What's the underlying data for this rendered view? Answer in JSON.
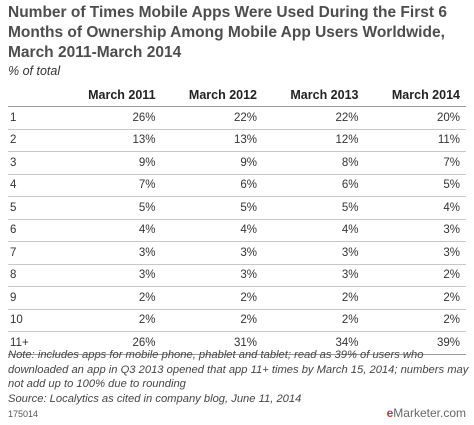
{
  "chart_data": {
    "type": "table",
    "title": "Number of Times Mobile Apps Were Used During the First 6 Months of Ownership Among Mobile App Users Worldwide, March 2011-March 2014",
    "subtitle": "% of total",
    "columns": [
      "",
      "March 2011",
      "March 2012",
      "March 2013",
      "March 2014"
    ],
    "rows": [
      {
        "label": "1",
        "values": [
          "26%",
          "22%",
          "22%",
          "20%"
        ]
      },
      {
        "label": "2",
        "values": [
          "13%",
          "13%",
          "12%",
          "11%"
        ]
      },
      {
        "label": "3",
        "values": [
          "9%",
          "9%",
          "8%",
          "7%"
        ]
      },
      {
        "label": "4",
        "values": [
          "7%",
          "6%",
          "6%",
          "5%"
        ]
      },
      {
        "label": "5",
        "values": [
          "5%",
          "5%",
          "5%",
          "4%"
        ]
      },
      {
        "label": "6",
        "values": [
          "4%",
          "4%",
          "4%",
          "3%"
        ]
      },
      {
        "label": "7",
        "values": [
          "3%",
          "3%",
          "3%",
          "3%"
        ]
      },
      {
        "label": "8",
        "values": [
          "3%",
          "3%",
          "3%",
          "2%"
        ]
      },
      {
        "label": "9",
        "values": [
          "2%",
          "2%",
          "2%",
          "2%"
        ]
      },
      {
        "label": "10",
        "values": [
          "2%",
          "2%",
          "2%",
          "2%"
        ]
      },
      {
        "label": "11+",
        "values": [
          "26%",
          "31%",
          "34%",
          "39%"
        ]
      }
    ]
  },
  "note": "Note: includes apps for mobile phone, phablet and tablet; read as 39% of users who downloaded an app in Q3 2013 opened that app 11+ times by March 15, 2014; numbers may not add up to 100% due to rounding",
  "source": "Source: Localytics as cited in company blog, June 11, 2014",
  "footer_code": "175014",
  "brand": {
    "e": "e",
    "rest": "Marketer",
    "suffix": ".com",
    "accent_color": "#c0392b"
  }
}
